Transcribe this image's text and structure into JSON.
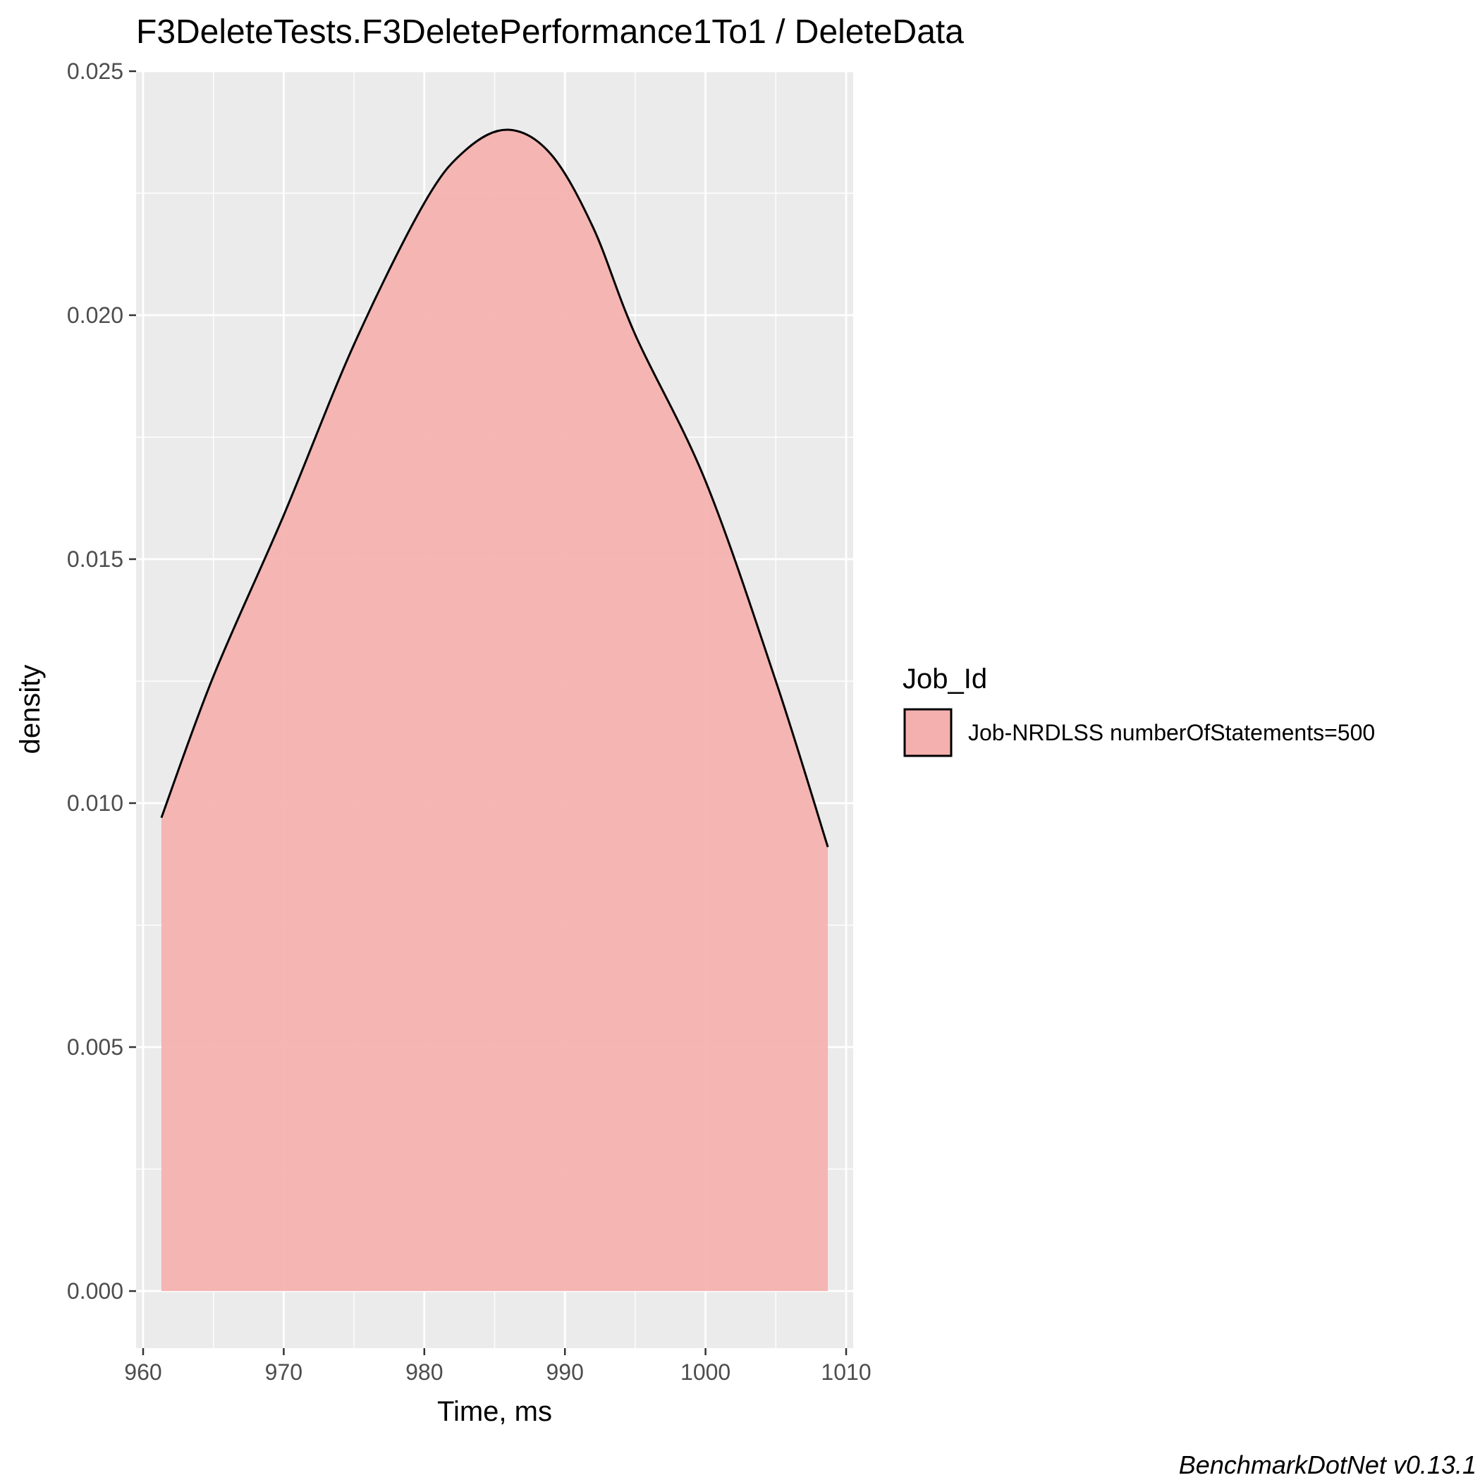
{
  "chart_data": {
    "type": "area",
    "title": "F3DeleteTests.F3DeletePerformance1To1 / DeleteData",
    "xlabel": "Time, ms",
    "ylabel": "density",
    "xlim": [
      959.5,
      1010.5
    ],
    "ylim": [
      -0.00117,
      0.025
    ],
    "x_ticks": [
      960,
      970,
      980,
      990,
      1000,
      1010
    ],
    "x_tick_labels": [
      "960",
      "970",
      "980",
      "990",
      "1000",
      "1010"
    ],
    "y_ticks": [
      0.0,
      0.005,
      0.01,
      0.015,
      0.02,
      0.025
    ],
    "y_tick_labels": [
      "0.000",
      "0.005",
      "0.010",
      "0.015",
      "0.020",
      "0.025"
    ],
    "grid": true,
    "legend": {
      "title": "Job_Id",
      "position": "right"
    },
    "series": [
      {
        "name": "Job-NRDLSS numberOfStatements=500",
        "fill_color": "#f4b0ae",
        "line_color": "#000000",
        "x": [
          961.3,
          965,
          970,
          975,
          980,
          983,
          986,
          989,
          992,
          995,
          1000,
          1005,
          1008.7
        ],
        "y": [
          0.0097,
          0.0126,
          0.0159,
          0.0194,
          0.0223,
          0.0234,
          0.0238,
          0.0233,
          0.0218,
          0.0196,
          0.0166,
          0.0125,
          0.0091
        ]
      }
    ]
  },
  "caption": "BenchmarkDotNet v0.13.1"
}
